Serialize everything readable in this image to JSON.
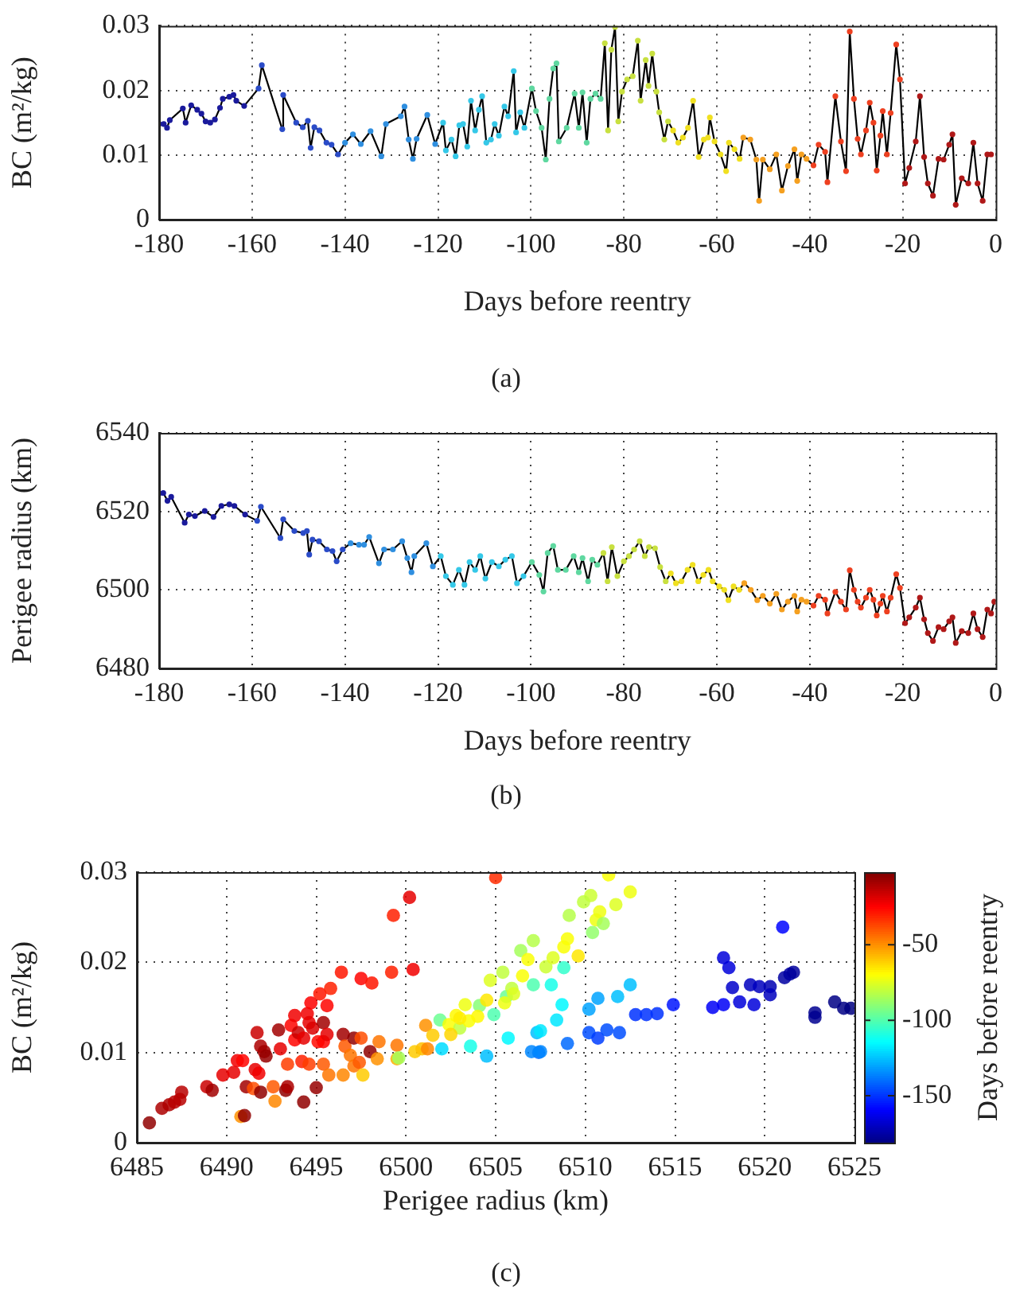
{
  "chart_data": [
    {
      "type": "line",
      "xlabel": "Days before reentry",
      "ylabel": "BC (m²/kg)",
      "annotations": [
        "(a)"
      ],
      "xlim": [
        -180,
        0
      ],
      "ylim": [
        0,
        0.03
      ],
      "xticks": [
        -180,
        -160,
        -140,
        -120,
        -100,
        -80,
        -60,
        -40,
        -20,
        0
      ],
      "yticks": [
        0,
        0.01,
        0.02,
        0.03
      ],
      "grid": true,
      "marker": "circle",
      "series": [
        {
          "color": "#000000",
          "x": [
            -180,
            -179,
            -178.3,
            -177.7,
            -174.9,
            -174.3,
            -173.1,
            -171.8,
            -170.9,
            -170,
            -169,
            -168,
            -166.9,
            -166.3,
            -164.9,
            -164,
            -163.4,
            -161.7,
            -158.6,
            -157.9,
            -153.5,
            -153.3,
            -150.5,
            -149.1,
            -148,
            -147.4,
            -146.6,
            -145.5,
            -144,
            -142.9,
            -141.5,
            -140,
            -138.3,
            -136.6,
            -134.5,
            -132.2,
            -131.2,
            -128,
            -127.2,
            -126.3,
            -125.4,
            -124.6,
            -122.3,
            -120.6,
            -118.9,
            -118.3,
            -117.1,
            -116.2,
            -115.4,
            -114.6,
            -113.7,
            -112.9,
            -112,
            -111.2,
            -110.5,
            -109.6,
            -108.6,
            -107.8,
            -106.9,
            -105.7,
            -104.9,
            -103.7,
            -103.2,
            -102.3,
            -101.4,
            -99.8,
            -98.9,
            -97.7,
            -96.8,
            -96,
            -95.2,
            -94.5,
            -94,
            -92.3,
            -90.6,
            -89.7,
            -88.9,
            -88,
            -87.2,
            -86.1,
            -85,
            -84.1,
            -83.4,
            -82.7,
            -81.9,
            -81.2,
            -80.4,
            -79.3,
            -78.1,
            -77,
            -76.4,
            -75.3,
            -74.7,
            -73.9,
            -73,
            -72.4,
            -71.3,
            -70.5,
            -69.4,
            -68.3,
            -67.3,
            -66.2,
            -65.1,
            -63.9,
            -62.8,
            -61.9,
            -61.5,
            -60.5,
            -59.2,
            -58,
            -57.4,
            -56.2,
            -55.1,
            -54.3,
            -52.8,
            -51.5,
            -50.9,
            -50.1,
            -48.6,
            -47.2,
            -46,
            -44.7,
            -43.3,
            -42.7,
            -41.8,
            -40.7,
            -39.2,
            -38.1,
            -36.7,
            -36.2,
            -34.5,
            -33.3,
            -32.2,
            -31.4,
            -30.5,
            -29.7,
            -29,
            -27.9,
            -27.1,
            -26.3,
            -25.6,
            -24.8,
            -24.3,
            -23.4,
            -22.6,
            -21.4,
            -20.6,
            -19.5,
            -18.6,
            -17.2,
            -16.3,
            -15.4,
            -14.6,
            -13.5,
            -12.3,
            -11.2,
            -10,
            -9.3,
            -8.6,
            -7.3,
            -5.9,
            -4.8,
            -3.9,
            -2.8,
            -1.8,
            -1
          ],
          "values": [
            0.0148,
            0.0148,
            0.0142,
            0.0154,
            0.0172,
            0.015,
            0.0177,
            0.017,
            0.0164,
            0.0152,
            0.015,
            0.0155,
            0.0173,
            0.0187,
            0.019,
            0.0193,
            0.0184,
            0.0176,
            0.0203,
            0.0239,
            0.014,
            0.0193,
            0.015,
            0.0143,
            0.0153,
            0.0111,
            0.0143,
            0.0138,
            0.0119,
            0.0116,
            0.0101,
            0.0119,
            0.0132,
            0.0117,
            0.0137,
            0.0098,
            0.0148,
            0.016,
            0.0175,
            0.0124,
            0.0094,
            0.0125,
            0.0162,
            0.0117,
            0.015,
            0.0107,
            0.0124,
            0.0098,
            0.0146,
            0.0148,
            0.0113,
            0.0184,
            0.0138,
            0.017,
            0.0191,
            0.0119,
            0.0124,
            0.0148,
            0.013,
            0.0175,
            0.016,
            0.023,
            0.0135,
            0.0166,
            0.0142,
            0.0203,
            0.0168,
            0.0142,
            0.0093,
            0.0187,
            0.0234,
            0.0242,
            0.0121,
            0.0142,
            0.0195,
            0.0142,
            0.0197,
            0.0119,
            0.0187,
            0.0195,
            0.0187,
            0.0273,
            0.0138,
            0.0263,
            0.0298,
            0.0152,
            0.0198,
            0.0217,
            0.0222,
            0.0277,
            0.0184,
            0.0247,
            0.0207,
            0.0257,
            0.0198,
            0.0166,
            0.0124,
            0.0152,
            0.0138,
            0.0119,
            0.0127,
            0.0142,
            0.0184,
            0.0097,
            0.0124,
            0.0127,
            0.0158,
            0.0121,
            0.0101,
            0.0075,
            0.0119,
            0.0109,
            0.0094,
            0.0127,
            0.0124,
            0.0093,
            0.0029,
            0.0093,
            0.0078,
            0.0101,
            0.0045,
            0.0083,
            0.0109,
            0.006,
            0.0101,
            0.0094,
            0.0084,
            0.0116,
            0.0105,
            0.0058,
            0.0191,
            0.0121,
            0.0075,
            0.0291,
            0.0187,
            0.0125,
            0.0101,
            0.0138,
            0.0181,
            0.015,
            0.0076,
            0.013,
            0.0168,
            0.0101,
            0.0165,
            0.0271,
            0.0217,
            0.0056,
            0.008,
            0.0121,
            0.0191,
            0.0097,
            0.0056,
            0.0037,
            0.0094,
            0.0093,
            0.0116,
            0.0132,
            0.0023,
            0.0064,
            0.0056,
            0.0119,
            0.0056,
            0.0029,
            0.0101,
            0.0101
          ],
          "colors": [
            "#1a1a9c",
            "#1a1a9c",
            "#1a1a9c",
            "#1a1a9c",
            "#1a1a9c",
            "#1a1a9c",
            "#1a1a9c",
            "#1a1a9c",
            "#1a1a9c",
            "#1a1a9c",
            "#1a1a9c",
            "#1a1a9c",
            "#1a1a9c",
            "#1a1a9c",
            "#1a1a9c",
            "#1a1a9c",
            "#1a1a9c",
            "#1a1a9c",
            "#2a4bc8",
            "#2a4bc8",
            "#2a4bc8",
            "#2a4bc8",
            "#2a4bc8",
            "#2a4bc8",
            "#2a4bc8",
            "#2a4bc8",
            "#2a4bc8",
            "#2a4bc8",
            "#2a4bc8",
            "#2a4bc8",
            "#2a4bc8",
            "#2f8fe0",
            "#2f8fe0",
            "#2f8fe0",
            "#2f8fe0",
            "#2f8fe0",
            "#2f8fe0",
            "#2f8fe0",
            "#2f8fe0",
            "#2f8fe0",
            "#2f8fe0",
            "#2f8fe0",
            "#2f8fe0",
            "#2f8fe0",
            "#35c8e8",
            "#35c8e8",
            "#35c8e8",
            "#35c8e8",
            "#35c8e8",
            "#35c8e8",
            "#35c8e8",
            "#35c8e8",
            "#35c8e8",
            "#35c8e8",
            "#35c8e8",
            "#35c8e8",
            "#35c8e8",
            "#35c8e8",
            "#35c8e8",
            "#35c8e8",
            "#35c8e8",
            "#35c8e8",
            "#35c8e8",
            "#35c8e8",
            "#35c8e8",
            "#5fd8a0",
            "#5fd8a0",
            "#5fd8a0",
            "#5fd8a0",
            "#5fd8a0",
            "#5fd8a0",
            "#5fd8a0",
            "#5fd8a0",
            "#5fd8a0",
            "#5fd8a0",
            "#5fd8a0",
            "#5fd8a0",
            "#5fd8a0",
            "#5fd8a0",
            "#5fd8a0",
            "#5fd8a0",
            "#c8e040",
            "#c8e040",
            "#c8e040",
            "#c8e040",
            "#c8e040",
            "#c8e040",
            "#c8e040",
            "#c8e040",
            "#c8e040",
            "#c8e040",
            "#c8e040",
            "#c8e040",
            "#c8e040",
            "#c8e040",
            "#c8e040",
            "#c8e040",
            "#c8e040",
            "#f0e020",
            "#f0e020",
            "#f0e020",
            "#f0e020",
            "#f0e020",
            "#f0e020",
            "#f0e020",
            "#f0e020",
            "#f0e020",
            "#f0e020",
            "#f0e020",
            "#f0e020",
            "#f0e020",
            "#f0e020",
            "#f0e020",
            "#f5a020",
            "#f5a020",
            "#f5a020",
            "#f5a020",
            "#f5a020",
            "#f5a020",
            "#f5a020",
            "#f5a020",
            "#f5a020",
            "#f5a020",
            "#f5a020",
            "#f5a020",
            "#f5a020",
            "#ee4020",
            "#ee4020",
            "#ee4020",
            "#ee4020",
            "#ee4020",
            "#ee4020",
            "#ee4020",
            "#ee4020",
            "#ee4020",
            "#ee4020",
            "#ee4020",
            "#ee4020",
            "#ee4020",
            "#ee4020",
            "#ee4020",
            "#ee4020",
            "#ee4020",
            "#ee4020",
            "#ee4020",
            "#ee4020",
            "#ee4020",
            "#b01818",
            "#b01818",
            "#b01818",
            "#b01818",
            "#b01818",
            "#b01818",
            "#b01818",
            "#b01818",
            "#b01818",
            "#b01818",
            "#b01818",
            "#b01818",
            "#b01818",
            "#b01818",
            "#b01818",
            "#b01818",
            "#b01818",
            "#b01818",
            "#b01818"
          ]
        }
      ]
    },
    {
      "type": "line",
      "xlabel": "Days before reentry",
      "ylabel": "Perigee radius (km)",
      "annotations": [
        "(b)"
      ],
      "xlim": [
        -180,
        0
      ],
      "ylim": [
        6480,
        6540
      ],
      "xticks": [
        -180,
        -160,
        -140,
        -120,
        -100,
        -80,
        -60,
        -40,
        -20,
        0
      ],
      "yticks": [
        6480,
        6500,
        6520,
        6540
      ],
      "grid": true,
      "marker": "circle",
      "series": [
        {
          "color": "#000000",
          "x": [
            -180,
            -179.1,
            -178.2,
            -177.4,
            -174.5,
            -173.6,
            -172.3,
            -170.2,
            -168.3,
            -166.6,
            -164.9,
            -163.8,
            -161.5,
            -158.9,
            -158.1,
            -153.9,
            -153.3,
            -150.9,
            -149,
            -148.2,
            -147.7,
            -147,
            -145.6,
            -143.9,
            -142.7,
            -141.8,
            -140.5,
            -138.8,
            -137,
            -135.9,
            -134.8,
            -132.7,
            -131.6,
            -129.7,
            -127.7,
            -126.6,
            -125.7,
            -125.1,
            -122.5,
            -121.1,
            -119.4,
            -118.3,
            -116.8,
            -115.5,
            -114.3,
            -113.2,
            -112,
            -110.9,
            -109.8,
            -108.4,
            -106.9,
            -105.5,
            -104.1,
            -103,
            -101.6,
            -99.8,
            -98.2,
            -97.3,
            -96.4,
            -95.2,
            -94.2,
            -92.5,
            -90.8,
            -89.7,
            -88.9,
            -87.7,
            -86.8,
            -85.7,
            -84.4,
            -83.5,
            -82.6,
            -81.4,
            -80,
            -78.9,
            -77.8,
            -76.6,
            -75.5,
            -74.6,
            -73.3,
            -72.2,
            -71,
            -69.9,
            -68.8,
            -67.6,
            -66.3,
            -65.2,
            -64,
            -62.9,
            -61.8,
            -60.9,
            -59.5,
            -58.4,
            -57.5,
            -56.4,
            -55.2,
            -54.1,
            -52.7,
            -51.3,
            -50.1,
            -48.6,
            -47.2,
            -46,
            -44.7,
            -43.3,
            -42.7,
            -41.8,
            -40.7,
            -39.2,
            -38.1,
            -36.7,
            -36.2,
            -34.5,
            -33.3,
            -32.2,
            -31.4,
            -30.5,
            -29.7,
            -29,
            -27.9,
            -27.1,
            -26.3,
            -25.6,
            -24.8,
            -24.3,
            -23.4,
            -22.6,
            -21.4,
            -20.6,
            -19.5,
            -18.6,
            -17.2,
            -16.3,
            -15.4,
            -14.6,
            -13.5,
            -12.3,
            -11.2,
            -10,
            -9.3,
            -8.6,
            -7.3,
            -5.9,
            -4.8,
            -3.9,
            -2.8,
            -1.8,
            -1,
            -0.3
          ],
          "values": [
            6524.6,
            6524.7,
            6522.7,
            6523.7,
            6517.1,
            6519.2,
            6518.8,
            6520.1,
            6518.6,
            6521.4,
            6521.8,
            6521.4,
            6519.2,
            6517.6,
            6521.2,
            6513.2,
            6518,
            6515,
            6514.5,
            6515,
            6509,
            6512.8,
            6512.4,
            6510.3,
            6509.9,
            6507.3,
            6510.3,
            6511.9,
            6511.5,
            6511.5,
            6513.5,
            6506.8,
            6510.3,
            6510.3,
            6512.4,
            6508.1,
            6504.5,
            6508.6,
            6511.9,
            6506,
            6508.6,
            6503.5,
            6501.3,
            6505.1,
            6501.3,
            6507.1,
            6505.1,
            6508.6,
            6502.9,
            6507.1,
            6506,
            6507.7,
            6508.6,
            6501.7,
            6503.5,
            6507.1,
            6503.8,
            6499.6,
            6509.4,
            6511.2,
            6505.1,
            6505.1,
            6508.6,
            6504.5,
            6508.1,
            6502.2,
            6507.7,
            6506.4,
            6509.4,
            6502.2,
            6510.9,
            6503.5,
            6507.3,
            6508.6,
            6510.3,
            6512.4,
            6508.6,
            6510.9,
            6510.6,
            6505.8,
            6502.2,
            6504.2,
            6501.7,
            6502.2,
            6505.1,
            6506.4,
            6502.2,
            6503.8,
            6505.1,
            6502.2,
            6500.9,
            6500,
            6497.4,
            6500.9,
            6500,
            6501.7,
            6500,
            6497.4,
            6498.5,
            6496.5,
            6499,
            6495,
            6497,
            6498.5,
            6494.5,
            6497.5,
            6497,
            6496,
            6498.5,
            6497.5,
            6494,
            6499.5,
            6497,
            6495,
            6505,
            6500,
            6497,
            6495.5,
            6498,
            6500,
            6497.5,
            6493.5,
            6496.5,
            6498.5,
            6494.5,
            6498,
            6504,
            6500.5,
            6491.5,
            6493,
            6495.5,
            6498,
            6492.5,
            6489,
            6487,
            6490.5,
            6490,
            6492,
            6493,
            6486.5,
            6489.5,
            6489,
            6494,
            6490,
            6488,
            6495,
            6494,
            6497
          ],
          "colors": [
            "#1a1a9c",
            "#1a1a9c",
            "#1a1a9c",
            "#1a1a9c",
            "#1a1a9c",
            "#1a1a9c",
            "#1a1a9c",
            "#1a1a9c",
            "#1a1a9c",
            "#1a1a9c",
            "#1a1a9c",
            "#1a1a9c",
            "#1a1a9c",
            "#2a4bc8",
            "#2a4bc8",
            "#2a4bc8",
            "#2a4bc8",
            "#2a4bc8",
            "#2a4bc8",
            "#2a4bc8",
            "#2a4bc8",
            "#2a4bc8",
            "#2a4bc8",
            "#2a4bc8",
            "#2a4bc8",
            "#2a4bc8",
            "#2a4bc8",
            "#2f8fe0",
            "#2f8fe0",
            "#2f8fe0",
            "#2f8fe0",
            "#2f8fe0",
            "#2f8fe0",
            "#2f8fe0",
            "#2f8fe0",
            "#2f8fe0",
            "#2f8fe0",
            "#2f8fe0",
            "#2f8fe0",
            "#2f8fe0",
            "#35c8e8",
            "#35c8e8",
            "#35c8e8",
            "#35c8e8",
            "#35c8e8",
            "#35c8e8",
            "#35c8e8",
            "#35c8e8",
            "#35c8e8",
            "#35c8e8",
            "#35c8e8",
            "#35c8e8",
            "#35c8e8",
            "#35c8e8",
            "#35c8e8",
            "#5fd8a0",
            "#5fd8a0",
            "#5fd8a0",
            "#5fd8a0",
            "#5fd8a0",
            "#5fd8a0",
            "#5fd8a0",
            "#5fd8a0",
            "#5fd8a0",
            "#5fd8a0",
            "#5fd8a0",
            "#5fd8a0",
            "#5fd8a0",
            "#c8e040",
            "#c8e040",
            "#c8e040",
            "#c8e040",
            "#c8e040",
            "#c8e040",
            "#c8e040",
            "#c8e040",
            "#c8e040",
            "#c8e040",
            "#c8e040",
            "#c8e040",
            "#c8e040",
            "#f0e020",
            "#f0e020",
            "#f0e020",
            "#f0e020",
            "#f0e020",
            "#f0e020",
            "#f0e020",
            "#f0e020",
            "#f0e020",
            "#f0e020",
            "#f0e020",
            "#f0e020",
            "#f0e020",
            "#f0e020",
            "#f5a020",
            "#f5a020",
            "#f5a020",
            "#f5a020",
            "#f5a020",
            "#f5a020",
            "#f5a020",
            "#f5a020",
            "#f5a020",
            "#f5a020",
            "#f5a020",
            "#f5a020",
            "#ee4020",
            "#ee4020",
            "#ee4020",
            "#ee4020",
            "#ee4020",
            "#ee4020",
            "#ee4020",
            "#ee4020",
            "#ee4020",
            "#ee4020",
            "#ee4020",
            "#ee4020",
            "#ee4020",
            "#ee4020",
            "#ee4020",
            "#ee4020",
            "#ee4020",
            "#ee4020",
            "#ee4020",
            "#ee4020",
            "#ee4020",
            "#b01818",
            "#b01818",
            "#b01818",
            "#b01818",
            "#b01818",
            "#b01818",
            "#b01818",
            "#b01818",
            "#b01818",
            "#b01818",
            "#b01818",
            "#b01818",
            "#b01818",
            "#b01818",
            "#b01818",
            "#b01818",
            "#b01818",
            "#b01818",
            "#b01818",
            "#b01818"
          ]
        }
      ]
    },
    {
      "type": "scatter",
      "xlabel": "Perigee radius (km)",
      "ylabel": "BC (m²/kg)",
      "clabel": "Days before reentry",
      "annotations": [
        "(c)"
      ],
      "xlim": [
        6485,
        6525
      ],
      "ylim": [
        0,
        0.03
      ],
      "xticks": [
        6485,
        6490,
        6495,
        6500,
        6505,
        6510,
        6515,
        6520,
        6525
      ],
      "yticks": [
        0,
        0.01,
        0.02,
        0.03
      ],
      "grid": true,
      "marker": "circle",
      "clim": [
        -181,
        -2
      ],
      "cticks": [
        -150,
        -100,
        -50
      ],
      "series": [
        {
          "x": [
            6485.7,
            6486.4,
            6486.8,
            6487.1,
            6487.4,
            6487.5,
            6488.9,
            6489.2,
            6489.8,
            6490.4,
            6490.6,
            6490.9,
            6490.8,
            6491,
            6491.1,
            6491.5,
            6491.7,
            6491.6,
            6491.8,
            6491.9,
            6491.9,
            6492.1,
            6492.2,
            6492.9,
            6493,
            6492.6,
            6492.7,
            6493.3,
            6493.4,
            6493.6,
            6493.8,
            6493.8,
            6494,
            6494.3,
            6494.2,
            6493.4,
            6494.3,
            6494.5,
            6494.6,
            6494.7,
            6494.8,
            6495,
            6494.6,
            6495.1,
            6495.2,
            6495.4,
            6495.4,
            6495.4,
            6495.6,
            6495.6,
            6495.7,
            6495.8,
            6496.4,
            6496.5,
            6496.5,
            6496.6,
            6496.9,
            6497.1,
            6497.1,
            6497.4,
            6497.6,
            6497.5,
            6498,
            6497.5,
            6498.1,
            6498.4,
            6498.5,
            6499.2,
            6499.3,
            6499.5,
            6499.5,
            6499.6,
            6500.2,
            6500.4,
            6500.5,
            6500.9,
            6501.2,
            6501.1,
            6501.5,
            6502,
            6501.9,
            6502.4,
            6502.8,
            6503,
            6503.3,
            6503.6,
            6504.1,
            6504.5,
            6504.7,
            6504.9,
            6505,
            6505.4,
            6505.6,
            6505.7,
            6505.9,
            6506.4,
            6506.8,
            6507.1,
            6507.1,
            6507.3,
            6507.4,
            6511.3,
            6512.5,
            6510.3,
            6509.9,
            6511.7,
            6509.1,
            6510.8,
            6510.6,
            6511,
            6510.4,
            6509.6,
            6509,
            6508.8,
            6508.8,
            6508.1,
            6508.7,
            6508.4,
            6507.5,
            6509,
            6510.2,
            6510.7,
            6511.2,
            6511.9,
            6512.5,
            6511.8,
            6510.7,
            6510.2,
            6512.8,
            6513.4,
            6514,
            6514.9,
            6517.1,
            6517.7,
            6517.7,
            6518,
            6518.2,
            6518.6,
            6519.2,
            6519.4,
            6519.7,
            6520.3,
            6520.3,
            6521,
            6521.1,
            6521.4,
            6521.6,
            6522.8,
            6522.8,
            6523.9,
            6524.4,
            6524.8,
            6507,
            6507.5,
            6503.5,
            6504,
            6505.5,
            6506,
            6507.8,
            6508.2,
            6506.5,
            6504.5,
            6503,
            6502.5
          ],
          "values": [
            0.0022,
            0.0038,
            0.0042,
            0.0045,
            0.0048,
            0.0056,
            0.0062,
            0.0058,
            0.0075,
            0.0078,
            0.0091,
            0.0091,
            0.0029,
            0.003,
            0.0062,
            0.006,
            0.0122,
            0.0081,
            0.0077,
            0.0107,
            0.0056,
            0.0101,
            0.0096,
            0.0125,
            0.0104,
            0.0062,
            0.0046,
            0.0058,
            0.0062,
            0.013,
            0.0141,
            0.0114,
            0.0122,
            0.0116,
            0.009,
            0.0087,
            0.0045,
            0.0143,
            0.0133,
            0.0155,
            0.0127,
            0.0061,
            0.0087,
            0.0112,
            0.0165,
            0.0112,
            0.0087,
            0.0133,
            0.0152,
            0.012,
            0.0075,
            0.0171,
            0.0189,
            0.012,
            0.0075,
            0.0107,
            0.0097,
            0.0116,
            0.0085,
            0.0089,
            0.0075,
            0.0116,
            0.0101,
            0.0182,
            0.0177,
            0.0093,
            0.0112,
            0.0189,
            0.0252,
            0.0093,
            0.0108,
            0.0094,
            0.0272,
            0.0192,
            0.0101,
            0.0104,
            0.0104,
            0.013,
            0.0119,
            0.0104,
            0.0136,
            0.0131,
            0.0141,
            0.0127,
            0.0153,
            0.0107,
            0.0152,
            0.0096,
            0.018,
            0.0142,
            0.0294,
            0.0189,
            0.0162,
            0.0116,
            0.0171,
            0.0213,
            0.0203,
            0.0224,
            0.0175,
            0.0122,
            0.01,
            0.0297,
            0.0278,
            0.0274,
            0.0267,
            0.0264,
            0.0252,
            0.0256,
            0.0247,
            0.0243,
            0.0233,
            0.0207,
            0.0226,
            0.0217,
            0.0194,
            0.0175,
            0.0153,
            0.0136,
            0.0124,
            0.011,
            0.0122,
            0.0116,
            0.0125,
            0.0122,
            0.0175,
            0.0162,
            0.016,
            0.0148,
            0.0142,
            0.0142,
            0.0143,
            0.0153,
            0.015,
            0.0153,
            0.0205,
            0.0194,
            0.0172,
            0.0156,
            0.0175,
            0.0153,
            0.0173,
            0.0173,
            0.0164,
            0.0239,
            0.0183,
            0.0187,
            0.0189,
            0.0144,
            0.0139,
            0.0156,
            0.0149,
            0.0149,
            0.0101,
            0.0101,
            0.0135,
            0.014,
            0.0155,
            0.0165,
            0.0195,
            0.0205,
            0.0185,
            0.0158,
            0.0138,
            0.012
          ],
          "cvalues": [
            -5,
            -10,
            -10,
            -12,
            -12,
            -12,
            -15,
            -8,
            -20,
            -20,
            -22,
            -25,
            -50,
            -5,
            -8,
            -38,
            -15,
            -20,
            -22,
            -10,
            -5,
            -8,
            -6,
            -8,
            -20,
            -40,
            -48,
            -5,
            -10,
            -25,
            -22,
            -25,
            -15,
            -20,
            -30,
            -35,
            -5,
            -22,
            -20,
            -24,
            -18,
            -6,
            -35,
            -26,
            -28,
            -25,
            -40,
            -8,
            -25,
            -20,
            -45,
            -30,
            -28,
            -8,
            -48,
            -40,
            -45,
            -5,
            -45,
            -40,
            -60,
            -38,
            -5,
            -25,
            -28,
            -50,
            -45,
            -30,
            -30,
            -55,
            -45,
            -85,
            -20,
            -22,
            -60,
            -58,
            -48,
            -50,
            -60,
            -120,
            -95,
            -70,
            -68,
            -80,
            -72,
            -110,
            -90,
            -125,
            -75,
            -100,
            -32,
            -80,
            -95,
            -115,
            -80,
            -85,
            -70,
            -82,
            -100,
            -125,
            -140,
            -70,
            -72,
            -78,
            -80,
            -75,
            -82,
            -72,
            -72,
            -85,
            -88,
            -65,
            -70,
            -70,
            -105,
            -110,
            -115,
            -118,
            -118,
            -140,
            -145,
            -148,
            -145,
            -145,
            -125,
            -125,
            -130,
            -130,
            -150,
            -150,
            -150,
            -155,
            -160,
            -160,
            -165,
            -165,
            -168,
            -165,
            -170,
            -165,
            -170,
            -172,
            -170,
            -158,
            -175,
            -175,
            -176,
            -178,
            -178,
            -180,
            -180,
            -181,
            -135,
            -135,
            -70,
            -68,
            -72,
            -75,
            -78,
            -75,
            -70,
            -65,
            -66,
            -62
          ]
        }
      ]
    }
  ]
}
